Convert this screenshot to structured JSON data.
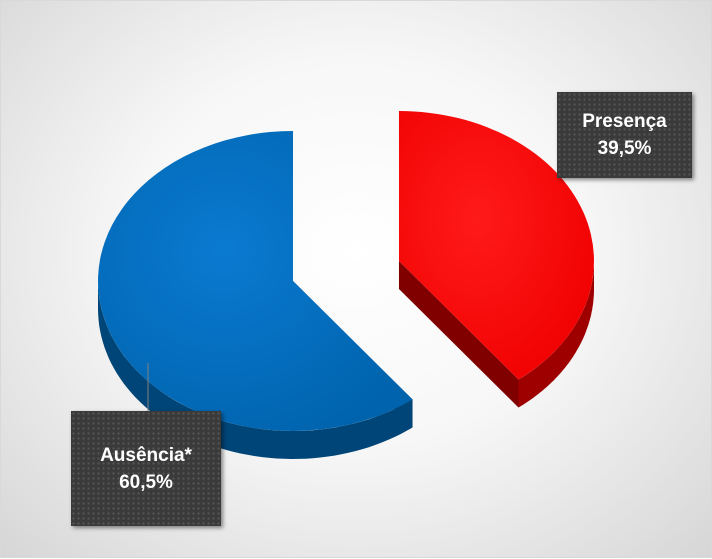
{
  "chart_data": {
    "type": "pie",
    "style": "3d-exploded",
    "categories": [
      "Presença",
      "Ausência*"
    ],
    "values": [
      39.5,
      60.5
    ],
    "value_labels": [
      "39,5%",
      "60,5%"
    ],
    "colors": [
      "#ff0000",
      "#0070c0"
    ],
    "legend": "none",
    "title": ""
  }
}
